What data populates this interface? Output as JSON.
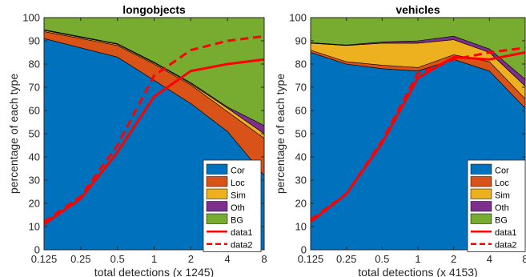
{
  "chart_data": [
    {
      "type": "area",
      "title": "longobjects",
      "xlabel": "total detections (x 1245)",
      "ylabel": "percentage of each type",
      "x": [
        0.125,
        0.25,
        0.5,
        1,
        2,
        4,
        8
      ],
      "xticklabels": [
        "0.125",
        "0.25",
        "0.5",
        "1",
        "2",
        "4",
        "8"
      ],
      "xscale": "log2",
      "ylim": [
        0,
        100
      ],
      "yticks": [
        0,
        10,
        20,
        30,
        40,
        50,
        60,
        70,
        80,
        90,
        100
      ],
      "stacked_series": [
        {
          "name": "Cor",
          "color": "#0072BD",
          "values": [
            91,
            87,
            83,
            73,
            63,
            51,
            32
          ]
        },
        {
          "name": "Loc",
          "color": "#D95319",
          "values": [
            3,
            4,
            5,
            7,
            8,
            8.5,
            16
          ]
        },
        {
          "name": "Sim",
          "color": "#EDB120",
          "values": [
            0.5,
            0.5,
            0.5,
            0.5,
            0.5,
            1.5,
            2
          ]
        },
        {
          "name": "Oth",
          "color": "#7E2F8E",
          "values": [
            0.3,
            0.3,
            0.3,
            0.3,
            0.5,
            0.5,
            3.5
          ]
        },
        {
          "name": "BG",
          "color": "#77AC30",
          "values": [
            5.2,
            8.2,
            11.2,
            19.2,
            28,
            38.5,
            46.5
          ]
        }
      ],
      "line_series": [
        {
          "name": "data1",
          "color": "#FF0000",
          "style": "solid",
          "values": [
            11,
            22,
            42,
            66,
            77,
            80,
            82
          ]
        },
        {
          "name": "data2",
          "color": "#FF0000",
          "style": "dashed",
          "values": [
            12,
            23,
            45,
            75,
            86,
            90,
            92
          ]
        }
      ],
      "legend": [
        "Cor",
        "Loc",
        "Sim",
        "Oth",
        "BG",
        "data1",
        "data2"
      ],
      "legend_location": "bottom-right"
    },
    {
      "type": "area",
      "title": "vehicles",
      "xlabel": "total detections (x 4153)",
      "ylabel": "percentage of each type",
      "x": [
        0.125,
        0.25,
        0.5,
        1,
        2,
        4,
        8
      ],
      "xticklabels": [
        "0.125",
        "0.25",
        "0.5",
        "1",
        "2",
        "4",
        "8"
      ],
      "xscale": "log2",
      "ylim": [
        0,
        100
      ],
      "yticks": [
        0,
        10,
        20,
        30,
        40,
        50,
        60,
        70,
        80,
        90,
        100
      ],
      "stacked_series": [
        {
          "name": "Cor",
          "color": "#0072BD",
          "values": [
            85,
            80,
            78,
            77,
            82,
            77,
            61
          ]
        },
        {
          "name": "Loc",
          "color": "#D95319",
          "values": [
            1,
            1,
            1.5,
            1.5,
            2,
            4,
            4
          ]
        },
        {
          "name": "Sim",
          "color": "#EDB120",
          "values": [
            3,
            7,
            9.5,
            10.5,
            6.5,
            4,
            5.5
          ]
        },
        {
          "name": "Oth",
          "color": "#7E2F8E",
          "values": [
            0.2,
            0.2,
            0.5,
            1,
            1.5,
            1.5,
            3
          ]
        },
        {
          "name": "BG",
          "color": "#77AC30",
          "values": [
            10.8,
            11.8,
            10.5,
            10,
            8,
            13.5,
            26.5
          ]
        }
      ],
      "line_series": [
        {
          "name": "data1",
          "color": "#FF0000",
          "style": "solid",
          "values": [
            12,
            24,
            46,
            74,
            83,
            82,
            85
          ]
        },
        {
          "name": "data2",
          "color": "#FF0000",
          "style": "dashed",
          "values": [
            13,
            24,
            47,
            76,
            82,
            85,
            87
          ]
        }
      ],
      "legend": [
        "Cor",
        "Loc",
        "Sim",
        "Oth",
        "BG",
        "data1",
        "data2"
      ],
      "legend_location": "bottom-right"
    }
  ]
}
